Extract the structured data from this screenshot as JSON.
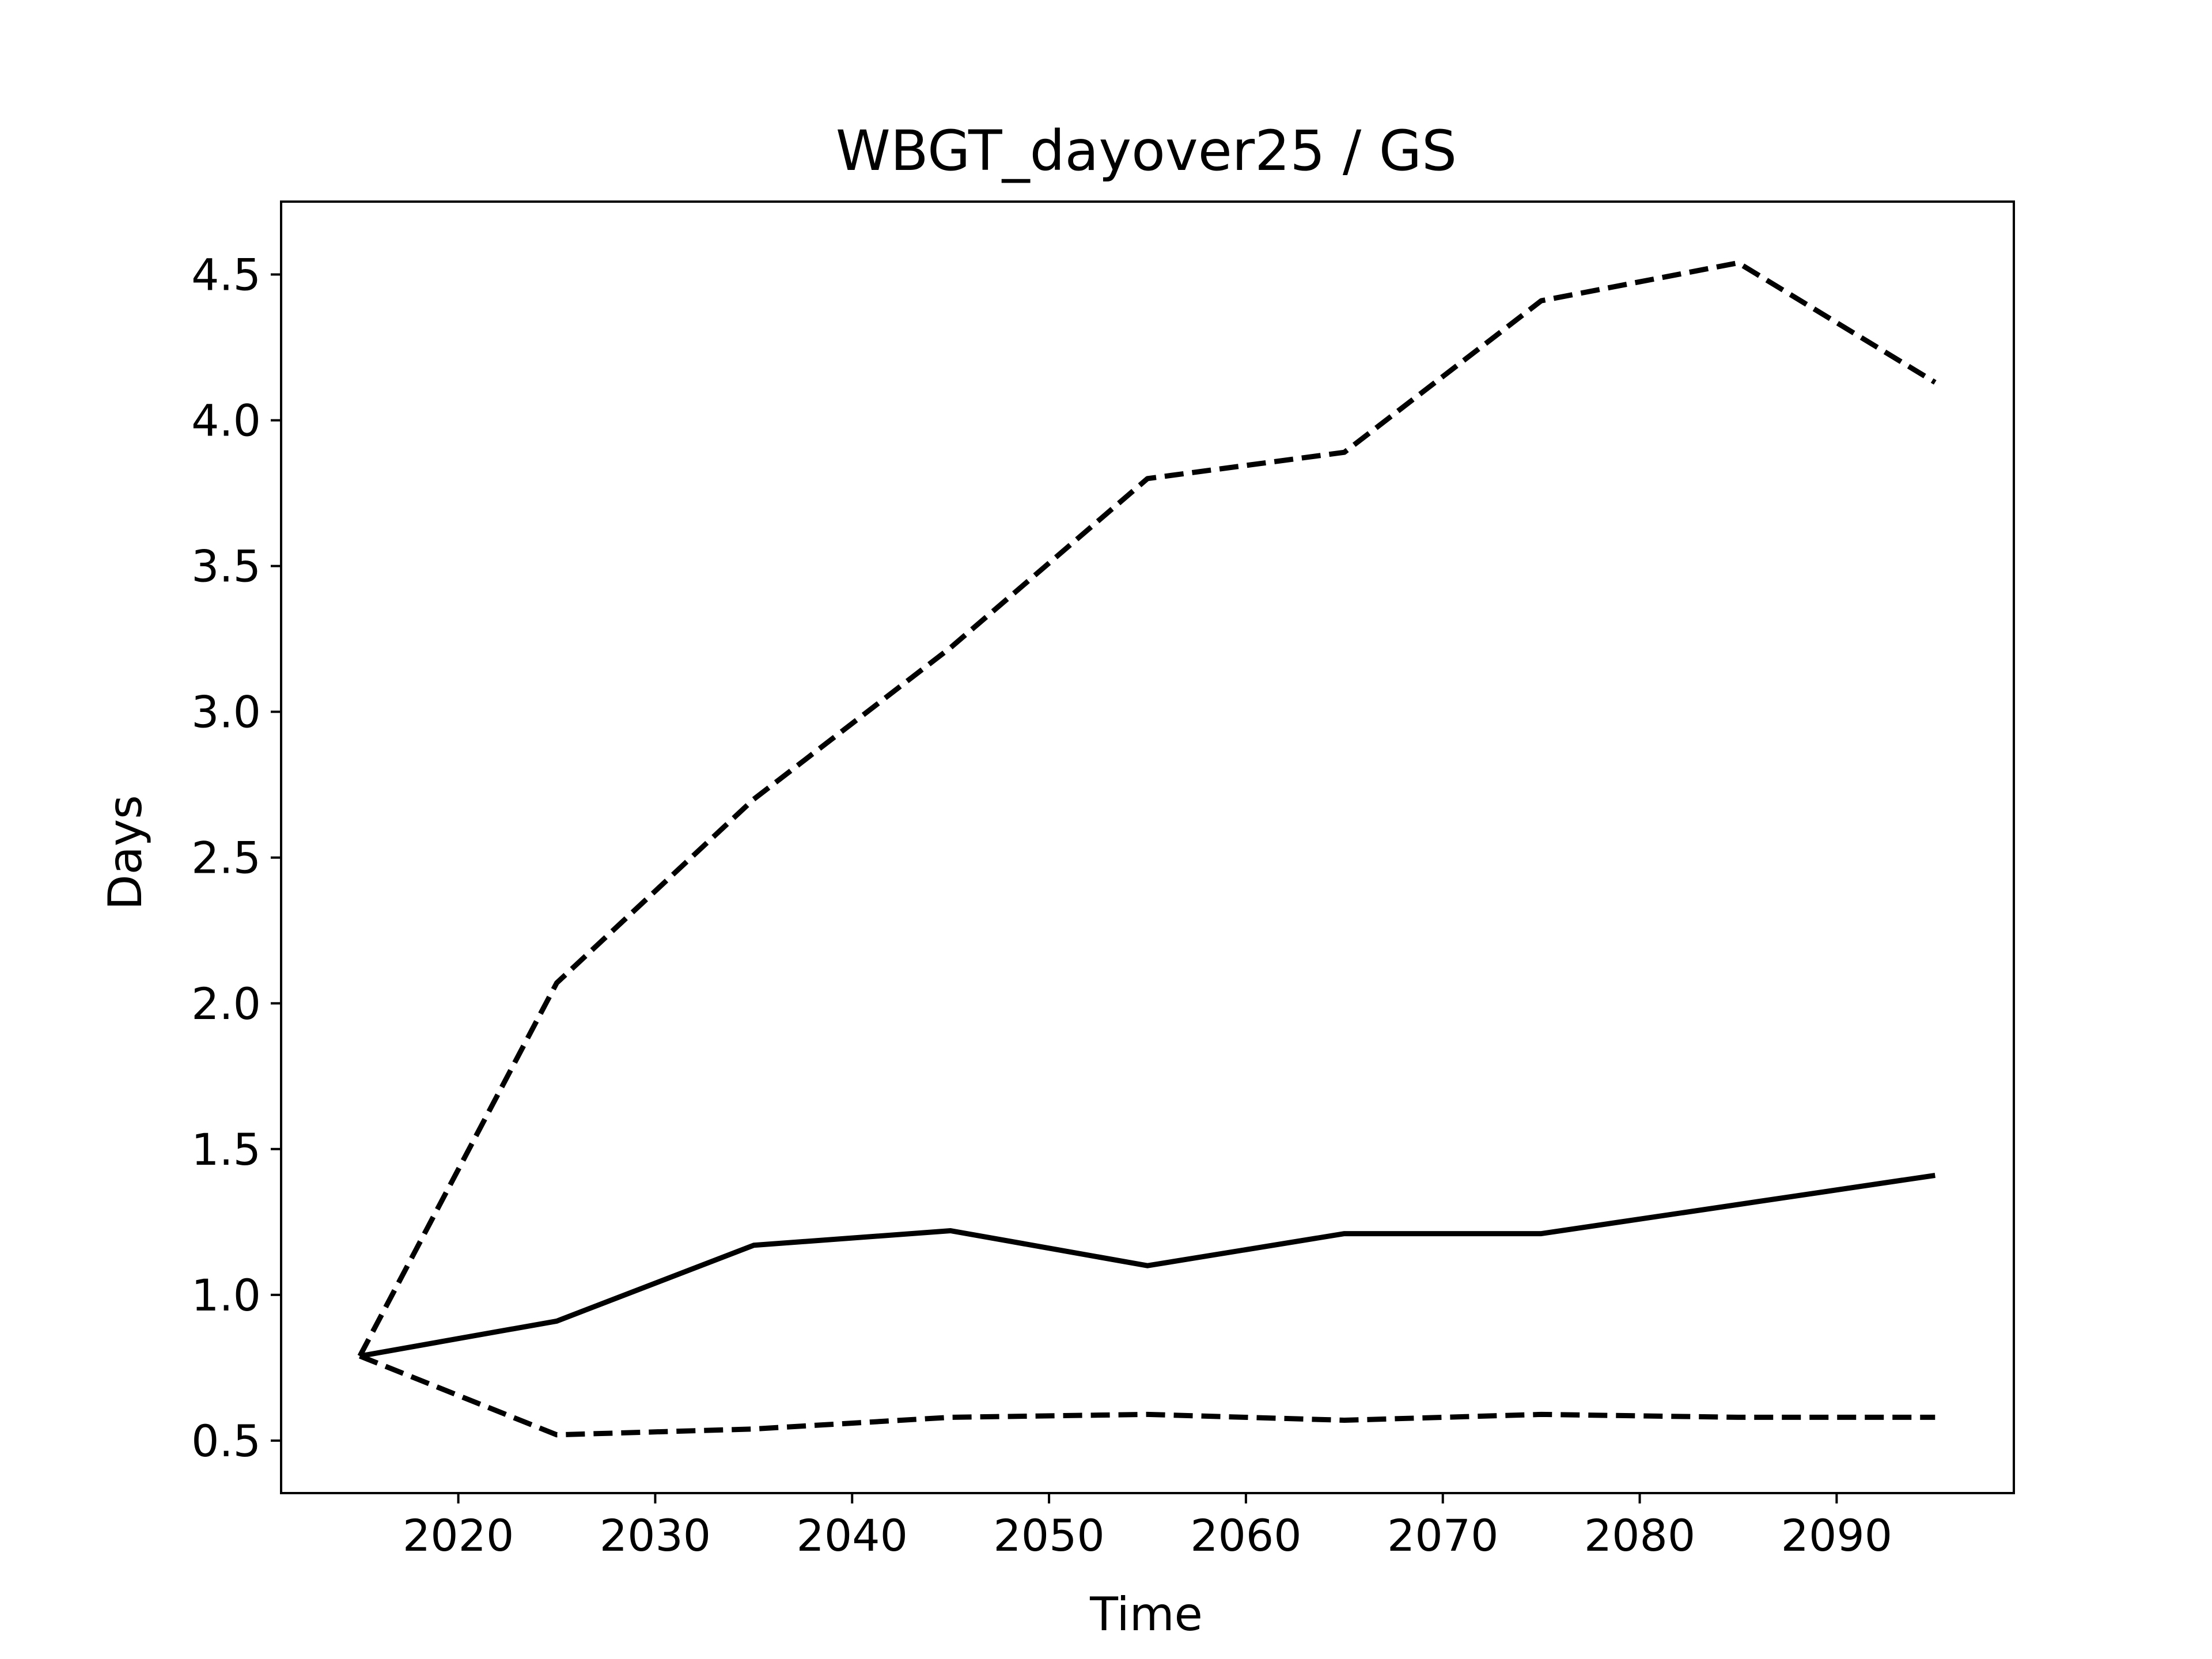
{
  "chart_data": {
    "type": "line",
    "title": "WBGT_dayover25 / GS",
    "xlabel": "Time",
    "ylabel": "Days",
    "xlim": [
      2011,
      2099
    ],
    "ylim": [
      0.32,
      4.75
    ],
    "xticks": [
      2020,
      2030,
      2040,
      2050,
      2060,
      2070,
      2080,
      2090
    ],
    "yticks": [
      0.5,
      1.0,
      1.5,
      2.0,
      2.5,
      3.0,
      3.5,
      4.0,
      4.5
    ],
    "xtick_labels": [
      "2020",
      "2030",
      "2040",
      "2050",
      "2060",
      "2070",
      "2080",
      "2090"
    ],
    "ytick_labels": [
      "0.5",
      "1.0",
      "1.5",
      "2.0",
      "2.5",
      "3.0",
      "3.5",
      "4.0",
      "4.5"
    ],
    "grid": false,
    "x": [
      2015,
      2025,
      2035,
      2045,
      2055,
      2065,
      2075,
      2085,
      2095
    ],
    "series": [
      {
        "style": "dashed",
        "color": "#000000",
        "values": [
          0.79,
          2.07,
          2.7,
          3.22,
          3.8,
          3.89,
          4.41,
          4.54,
          4.13
        ]
      },
      {
        "style": "solid",
        "color": "#000000",
        "values": [
          0.79,
          0.91,
          1.17,
          1.22,
          1.1,
          1.21,
          1.21,
          1.31,
          1.41
        ]
      },
      {
        "style": "dashed",
        "color": "#000000",
        "values": [
          0.79,
          0.52,
          0.54,
          0.58,
          0.59,
          0.57,
          0.59,
          0.58,
          0.58
        ]
      }
    ]
  }
}
